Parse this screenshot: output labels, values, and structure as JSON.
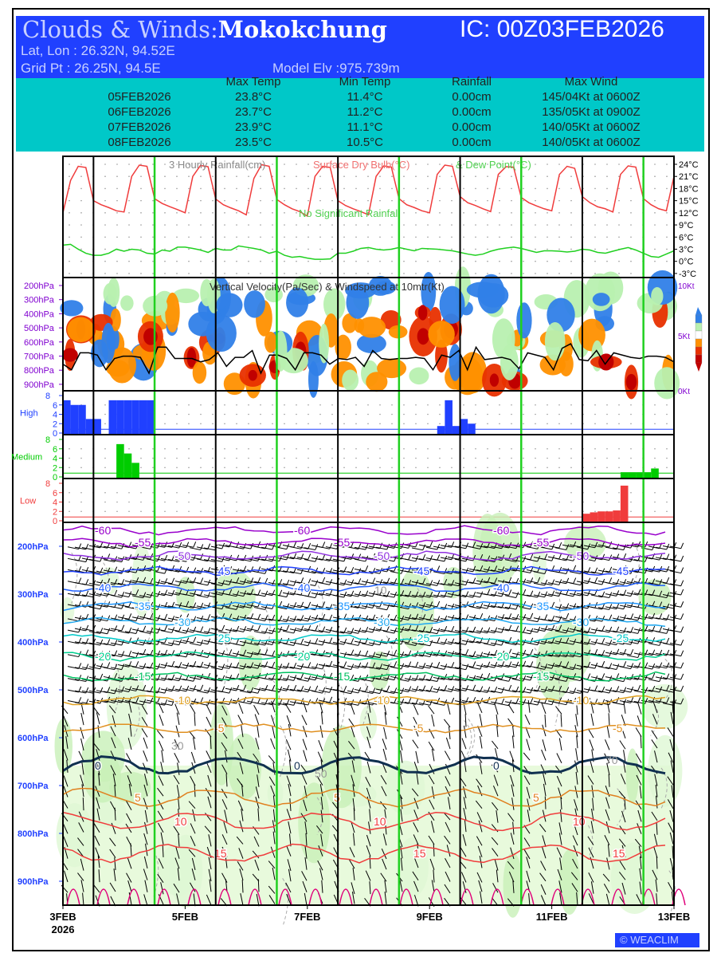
{
  "header": {
    "title_prefix": "Clouds & Winds:",
    "location": "Mokokchung",
    "ic": "IC: 00Z03FEB2026",
    "latlon": "Lat, Lon : 26.32N, 94.52E",
    "gridpt": "Grid Pt  : 26.25N, 94.5E",
    "elev": "Model Elv :975.739m"
  },
  "summary": {
    "columns": [
      "Max Temp",
      "Min Temp",
      "Rainfall",
      "Max Wind"
    ],
    "rows": [
      {
        "date": "05FEB2026",
        "max": "23.8°C",
        "min": "11.4°C",
        "rain": "0.00cm",
        "wind": "145/04Kt at 0600Z"
      },
      {
        "date": "06FEB2026",
        "max": "23.7°C",
        "min": "11.2°C",
        "rain": "0.00cm",
        "wind": "135/05Kt at 0900Z"
      },
      {
        "date": "07FEB2026",
        "max": "23.9°C",
        "min": "11.1°C",
        "rain": "0.00cm",
        "wind": "140/05Kt at 0600Z"
      },
      {
        "date": "08FEB2026",
        "max": "23.5°C",
        "min": "10.5°C",
        "rain": "0.00cm",
        "wind": "140/05Kt at 0600Z"
      }
    ]
  },
  "colors": {
    "header_bg": "#2040ff",
    "table_bg": "#00c8c8",
    "temp": "#f03c3c",
    "dew": "#20d020",
    "high": "#2040ff",
    "medium": "#00cc00",
    "low": "#f03c3c",
    "axis_purple": "#8000d0"
  },
  "chart_data": [
    {
      "type": "line",
      "title_parts": [
        "3 Hourly Rainfall(cm)",
        "Surface Dry Bulb(°C)",
        "& Dew Point(°C)"
      ],
      "annotation": "No Significant Rainfall",
      "x_hours_step": 3,
      "y_ticks": [
        "24°C",
        "21°C",
        "18°C",
        "15°C",
        "12°C",
        "9°C",
        "6°C",
        "3°C",
        "0°C",
        "-3°C"
      ],
      "ylim": [
        -3,
        24
      ],
      "series": [
        {
          "name": "Surface Dry Bulb",
          "values": [
            12,
            20,
            23.5,
            23.2,
            15,
            14,
            13.3,
            12.5,
            12.2,
            21,
            23.8,
            23.5,
            15.5,
            14.3,
            13.5,
            12.8,
            12,
            21,
            23.7,
            23.4,
            15.4,
            14,
            13.2,
            12.5,
            11.5,
            20.5,
            23.9,
            23.5,
            15.3,
            14,
            13,
            12.3,
            11.2,
            21,
            23.5,
            23.2,
            15,
            13.8,
            13,
            12.3,
            11.5,
            21,
            23.6,
            23.3,
            15.5,
            14,
            13.3,
            12.5,
            12,
            21.5,
            23.8,
            23.5,
            16,
            14.5,
            13.8,
            13,
            12.3,
            21.5,
            23.4,
            23.3,
            15.8,
            14.5,
            13.7,
            13,
            12.5,
            21.5,
            23.5,
            23,
            16,
            14.5,
            13.5,
            13,
            12.2,
            21.5,
            23.6,
            23.3,
            15.5,
            14,
            13,
            12.5,
            21
          ]
        },
        {
          "name": "Dew Point",
          "values": [
            4,
            4.2,
            3,
            2,
            1.5,
            1.5,
            2,
            3,
            2.5,
            3,
            2.8,
            2,
            1.8,
            2.8,
            2.5,
            3.5,
            3.5,
            3.2,
            2.8,
            2.2,
            3.2,
            2.8,
            2.8,
            3.8,
            3.5,
            3.2,
            2.8,
            2,
            2.5,
            1.5,
            1,
            1.2,
            0.8,
            0.5,
            0.5,
            0.6,
            2,
            2,
            2.5,
            3.2,
            3.4,
            3,
            2.8,
            3,
            3.4,
            3,
            2.6,
            3.2,
            3.1,
            3,
            2.8,
            2.6,
            2.2,
            1.8,
            1.5,
            1.8,
            2.5,
            3,
            3.3,
            3.5,
            3.2,
            2.7,
            2.2,
            2.6,
            2.6,
            2.5,
            2.3,
            2.5,
            3,
            2.8,
            2.2,
            2,
            2.5,
            3,
            3.4,
            2.8,
            2,
            1.2,
            1,
            1.8,
            2.6
          ]
        }
      ]
    },
    {
      "type": "heatmap",
      "title": "Vertical Velocity(Pa/Sec) & Windspeed at 10mtr(Kt)",
      "y_ticks": [
        "200hPa",
        "300hPa",
        "400hPa",
        "500hPa",
        "600hPa",
        "700hPa",
        "800hPa",
        "900hPa"
      ],
      "y2_ticks": [
        "10Kt",
        "5Kt",
        "0Kt"
      ],
      "windspeed_10m_kt": [
        2,
        1.5,
        3,
        3,
        2.8,
        1.5,
        2.5,
        2.7,
        2.7,
        2.6,
        1.2,
        3.5,
        3.5,
        2.5,
        2.5,
        2.5,
        2.2,
        2.4,
        3,
        1.8,
        2.6,
        2.6,
        3.2,
        1.2,
        2.8,
        2.8,
        2.5,
        1.5,
        3,
        3,
        2.8,
        2,
        2.5,
        2.4,
        2.6,
        1.8,
        3.2,
        2.5,
        2.4,
        2.5,
        2.5,
        2.6,
        2.5,
        1.5,
        2.8,
        2.6,
        3.2,
        1.5,
        3.5,
        2.4,
        2.5,
        2.6,
        2.4,
        1.6,
        3,
        2.8,
        2.6,
        1.5,
        3.4,
        3.8,
        2.4,
        2.3,
        3.2,
        2,
        3,
        2.8,
        2.6,
        2.5,
        2.7,
        2.7,
        2.6,
        2.2
      ]
    },
    {
      "type": "bar",
      "panels": [
        {
          "name": "High",
          "ticks": [
            "8",
            "6",
            "4",
            "2",
            "0"
          ],
          "values": [
            7,
            6,
            6,
            3,
            3,
            1,
            1,
            1,
            1,
            1,
            1,
            1,
            1,
            1,
            1,
            1,
            1,
            1,
            1,
            1,
            1,
            1,
            1,
            1,
            1,
            1,
            1,
            1,
            1,
            1,
            1,
            1,
            1,
            1,
            1,
            1,
            1,
            1,
            1,
            1,
            1,
            1,
            1,
            1,
            1,
            1,
            1,
            1,
            1,
            1,
            1,
            1,
            1,
            1,
            1,
            1,
            1,
            1,
            1,
            1,
            1,
            1,
            1,
            1,
            1,
            1,
            1,
            1,
            1,
            1,
            1,
            1,
            1,
            1,
            1,
            1,
            1,
            1,
            1,
            1
          ],
          "extra": {
            "from": 6,
            "to": 11,
            "value": 7,
            "late": [
              [
                49,
                1.5
              ],
              [
                50,
                7
              ],
              [
                51,
                1.5
              ],
              [
                52,
                3
              ],
              [
                53,
                2
              ]
            ]
          }
        },
        {
          "name": "Medium",
          "ticks": [
            "8",
            "6",
            "4",
            "2",
            "0"
          ],
          "values": {
            "7": 7,
            "8": 5,
            "9": 3,
            "73": 1,
            "74": 1,
            "75": 1,
            "76": 1,
            "77": 1.8
          }
        },
        {
          "name": "Low",
          "ticks": [
            "8",
            "6",
            "4",
            "2",
            "0"
          ],
          "values": {
            "68": 1.5,
            "69": 1.8,
            "70": 2,
            "71": 2,
            "72": 2.2,
            "73": 7.5
          }
        }
      ],
      "ylim": [
        0,
        8
      ]
    },
    {
      "type": "line",
      "title": "Temperature contours (°C) & winds",
      "y_ticks": [
        "200hPa",
        "300hPa",
        "400hPa",
        "500hPa",
        "600hPa",
        "700hPa",
        "800hPa",
        "900hPa"
      ],
      "contour_levels": [
        -60,
        -55,
        -50,
        -45,
        -40,
        -35,
        -30,
        -25,
        -20,
        -15,
        -10,
        -5,
        0,
        5,
        10,
        15
      ],
      "contour_labels": [
        "-60",
        "-55",
        "-50",
        "-45",
        "-40",
        "-35",
        "-30",
        "-25",
        "-20",
        "-15",
        "-10",
        "-5",
        "0",
        "5",
        "10",
        "15"
      ],
      "humidity_labels": [
        "30",
        "50",
        "70",
        "10"
      ],
      "x_ticks": [
        "3FEB",
        "5FEB",
        "7FEB",
        "9FEB",
        "11FEB",
        "13FEB"
      ],
      "x_year": "2026"
    }
  ],
  "footer": {
    "logo": "WEACLIM",
    "logo_icon": "copyright-icon"
  }
}
